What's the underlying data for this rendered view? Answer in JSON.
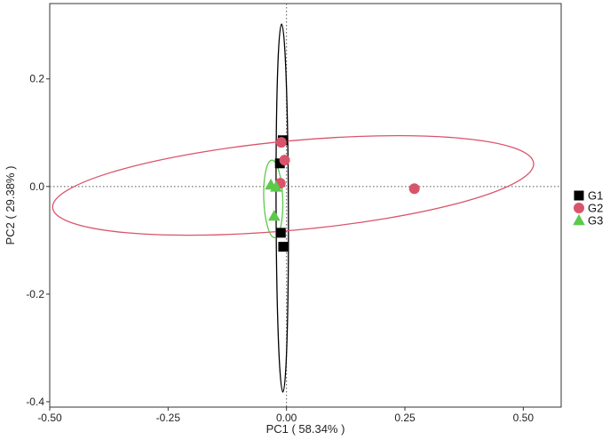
{
  "chart_data": {
    "type": "scatter",
    "title": "",
    "xlabel": "PC1 ( 58.34% )",
    "ylabel": "PC2 ( 29.38% )",
    "xlim": [
      -0.5,
      0.58
    ],
    "ylim": [
      -0.41,
      0.34
    ],
    "x_ticks": [
      -0.5,
      -0.25,
      0.0,
      0.25,
      0.5
    ],
    "x_tick_labels": [
      "-0.50",
      "-0.25",
      "0.00",
      "0.25",
      "0.50"
    ],
    "y_ticks": [
      -0.4,
      -0.2,
      0.0,
      0.2
    ],
    "y_tick_labels": [
      "-0.4",
      "-0.2",
      "0.0",
      "0.2"
    ],
    "grid": false,
    "reference_lines": {
      "x": 0,
      "y": 0,
      "style": "dotted"
    },
    "legend_position": "right",
    "series": [
      {
        "name": "G1",
        "marker": "square",
        "color": "#000000",
        "points": [
          {
            "x": -0.008,
            "y": 0.086
          },
          {
            "x": -0.014,
            "y": 0.043
          },
          {
            "x": -0.012,
            "y": -0.086
          },
          {
            "x": -0.007,
            "y": -0.112
          }
        ],
        "ellipse": {
          "cx": -0.009,
          "cy": -0.04,
          "rx": 0.013,
          "ry": 0.342,
          "rotation_deg": -0.2,
          "color": "#000000"
        }
      },
      {
        "name": "G2",
        "marker": "circle",
        "color": "#d9546a",
        "points": [
          {
            "x": -0.011,
            "y": 0.082
          },
          {
            "x": -0.004,
            "y": 0.049
          },
          {
            "x": -0.013,
            "y": 0.006
          },
          {
            "x": 0.27,
            "y": -0.004
          }
        ],
        "ellipse": {
          "cx": 0.014,
          "cy": 0.002,
          "rx": 0.51,
          "ry": 0.083,
          "rotation_deg": -5.3,
          "color": "#d9546a"
        }
      },
      {
        "name": "G3",
        "marker": "triangle",
        "color": "#5cc94a",
        "points": [
          {
            "x": -0.033,
            "y": 0.003
          },
          {
            "x": -0.022,
            "y": -0.001
          },
          {
            "x": -0.026,
            "y": -0.055
          }
        ],
        "ellipse": {
          "cx": -0.028,
          "cy": -0.023,
          "rx": 0.02,
          "ry": 0.072,
          "rotation_deg": -2.0,
          "color": "#5cc94a"
        }
      }
    ]
  }
}
